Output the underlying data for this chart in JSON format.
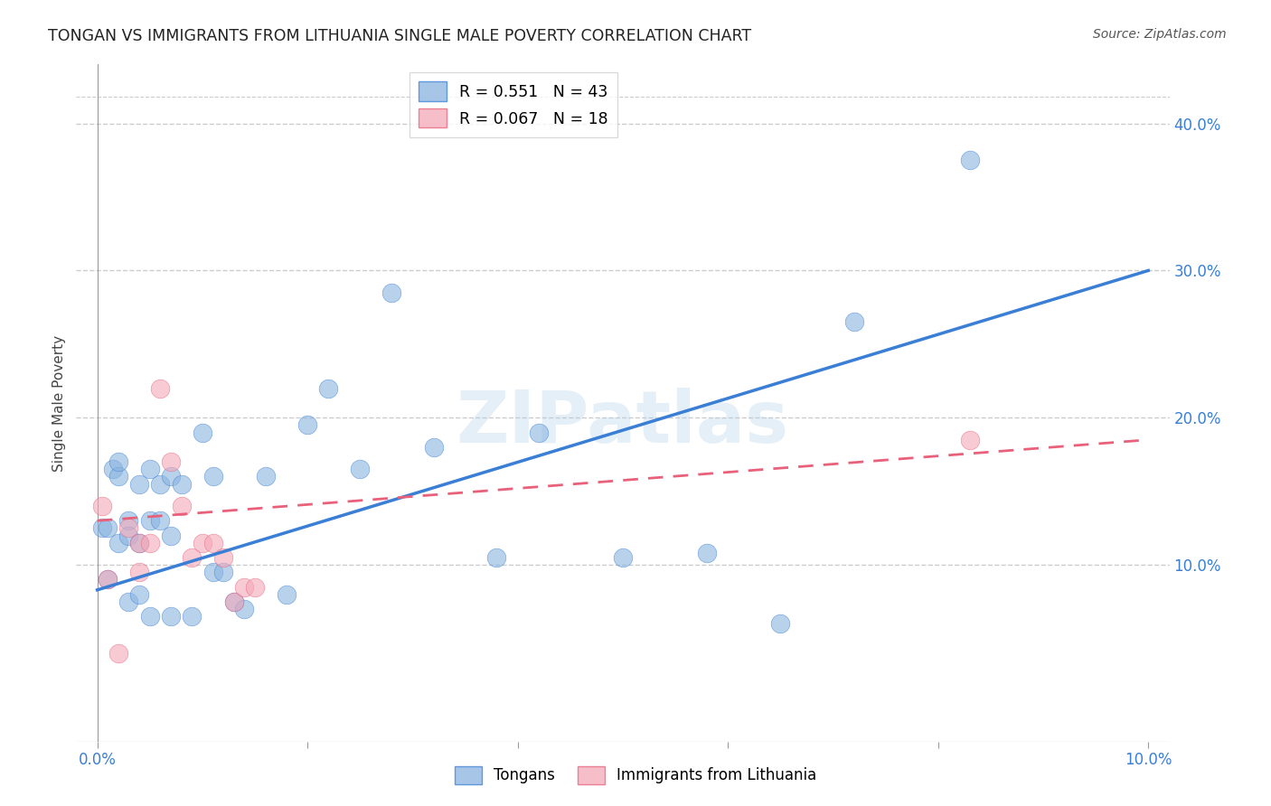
{
  "title": "TONGAN VS IMMIGRANTS FROM LITHUANIA SINGLE MALE POVERTY CORRELATION CHART",
  "source": "Source: ZipAtlas.com",
  "ylabel": "Single Male Poverty",
  "series1_label": "Tongans",
  "series2_label": "Immigrants from Lithuania",
  "R1": 0.551,
  "N1": 43,
  "R2": 0.067,
  "N2": 18,
  "color1": "#8ab4e0",
  "color2": "#f4a8b8",
  "line1_color": "#3a7fd5",
  "line2_color": "#e8607a",
  "xlim": [
    -0.002,
    0.102
  ],
  "ylim": [
    -0.02,
    0.44
  ],
  "x_ticks": [
    0.0,
    0.02,
    0.04,
    0.06,
    0.08,
    0.1
  ],
  "x_tick_labels": [
    "0.0%",
    "",
    "",
    "",
    "",
    "10.0%"
  ],
  "y_ticks_right": [
    0.1,
    0.2,
    0.3,
    0.4
  ],
  "y_tick_labels_right": [
    "10.0%",
    "20.0%",
    "30.0%",
    "40.0%"
  ],
  "watermark": "ZIPatlas",
  "tongans_x": [
    0.0005,
    0.001,
    0.001,
    0.0015,
    0.002,
    0.002,
    0.002,
    0.003,
    0.003,
    0.003,
    0.004,
    0.004,
    0.004,
    0.005,
    0.005,
    0.005,
    0.006,
    0.006,
    0.007,
    0.007,
    0.007,
    0.008,
    0.009,
    0.01,
    0.011,
    0.011,
    0.012,
    0.013,
    0.014,
    0.016,
    0.018,
    0.02,
    0.022,
    0.025,
    0.028,
    0.032,
    0.038,
    0.042,
    0.05,
    0.058,
    0.065,
    0.072,
    0.083
  ],
  "tongans_y": [
    0.125,
    0.09,
    0.125,
    0.165,
    0.16,
    0.17,
    0.115,
    0.13,
    0.12,
    0.075,
    0.08,
    0.115,
    0.155,
    0.165,
    0.13,
    0.065,
    0.155,
    0.13,
    0.12,
    0.16,
    0.065,
    0.155,
    0.065,
    0.19,
    0.16,
    0.095,
    0.095,
    0.075,
    0.07,
    0.16,
    0.08,
    0.195,
    0.22,
    0.165,
    0.285,
    0.18,
    0.105,
    0.19,
    0.105,
    0.108,
    0.06,
    0.265,
    0.375
  ],
  "lithuania_x": [
    0.0005,
    0.001,
    0.002,
    0.003,
    0.004,
    0.004,
    0.005,
    0.006,
    0.007,
    0.008,
    0.009,
    0.01,
    0.011,
    0.012,
    0.013,
    0.014,
    0.015,
    0.083
  ],
  "lithuania_y": [
    0.14,
    0.09,
    0.04,
    0.125,
    0.115,
    0.095,
    0.115,
    0.22,
    0.17,
    0.14,
    0.105,
    0.115,
    0.115,
    0.105,
    0.075,
    0.085,
    0.085,
    0.185
  ],
  "background_color": "#FFFFFF",
  "grid_color": "#DDDDDD"
}
